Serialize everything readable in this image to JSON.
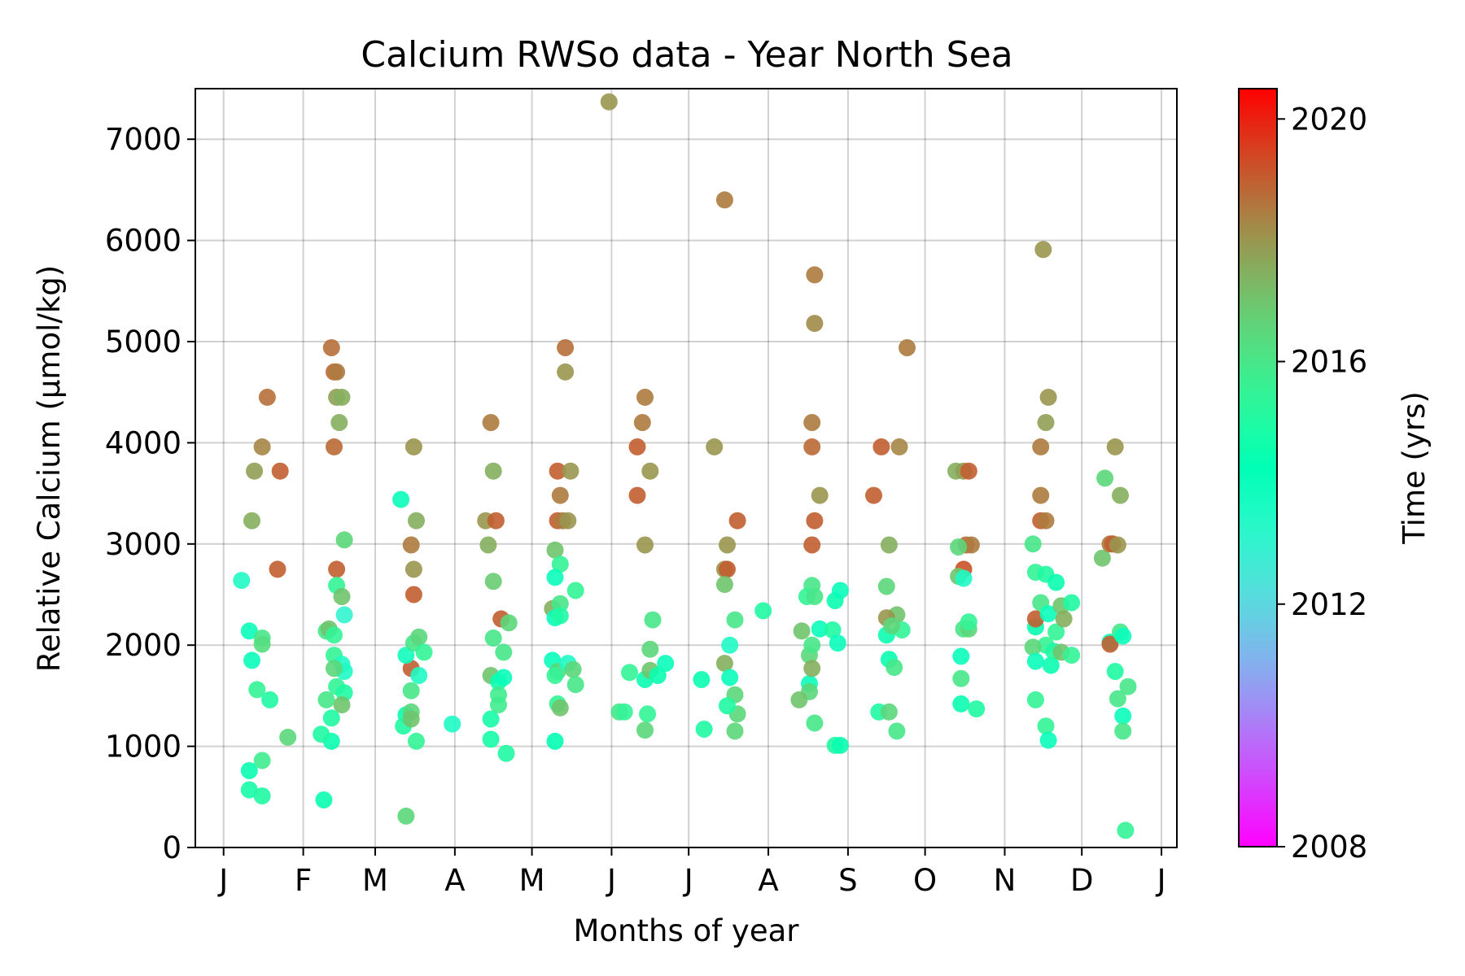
{
  "chart_data": {
    "type": "scatter",
    "title": "Calcium RWSo data - Year North Sea",
    "xlabel": "Months of year",
    "ylabel": "Relative Calcium (μmol/kg)",
    "x_unit": "day of year",
    "xlim": [
      -11,
      371
    ],
    "ylim": [
      0,
      7500
    ],
    "x_ticks": [
      {
        "day": 0,
        "label": "J"
      },
      {
        "day": 31,
        "label": "F"
      },
      {
        "day": 59,
        "label": "M"
      },
      {
        "day": 90,
        "label": "A"
      },
      {
        "day": 120,
        "label": "M"
      },
      {
        "day": 151,
        "label": "J"
      },
      {
        "day": 181,
        "label": "J"
      },
      {
        "day": 212,
        "label": "A"
      },
      {
        "day": 243,
        "label": "S"
      },
      {
        "day": 273,
        "label": "O"
      },
      {
        "day": 304,
        "label": "N"
      },
      {
        "day": 334,
        "label": "D"
      },
      {
        "day": 365,
        "label": "J"
      }
    ],
    "y_ticks": [
      0,
      1000,
      2000,
      3000,
      4000,
      5000,
      6000,
      7000
    ],
    "grid": true,
    "colorbar": {
      "label": "Time (yrs)",
      "min": 2008,
      "max": 2020.5,
      "ticks": [
        2008,
        2012,
        2016,
        2020
      ],
      "colormap": "rainbow"
    },
    "points": [
      [
        7,
        2640,
        2013.5
      ],
      [
        11,
        3230,
        2017.5
      ],
      [
        12,
        3720,
        2017.8
      ],
      [
        15,
        3960,
        2018.3
      ],
      [
        17,
        4450,
        2018.7
      ],
      [
        22,
        3720,
        2019.0
      ],
      [
        21,
        2750,
        2019.0
      ],
      [
        10,
        2140,
        2014.0
      ],
      [
        11,
        1850,
        2014.0
      ],
      [
        15,
        2070,
        2016.0
      ],
      [
        15,
        2010,
        2016.3
      ],
      [
        13,
        1560,
        2015.5
      ],
      [
        18,
        1460,
        2015.0
      ],
      [
        10,
        760,
        2014.5
      ],
      [
        10,
        570,
        2014.8
      ],
      [
        15,
        860,
        2015.8
      ],
      [
        15,
        510,
        2015.0
      ],
      [
        25,
        1090,
        2016.5
      ],
      [
        42,
        4940,
        2018.7
      ],
      [
        43,
        4700,
        2018.8
      ],
      [
        44,
        4700,
        2018.5
      ],
      [
        44,
        4450,
        2017.8
      ],
      [
        46,
        4450,
        2017.5
      ],
      [
        45,
        4200,
        2017.5
      ],
      [
        43,
        3960,
        2018.8
      ],
      [
        44,
        2750,
        2019.0
      ],
      [
        44,
        2590,
        2015.5
      ],
      [
        47,
        3040,
        2016.5
      ],
      [
        46,
        2480,
        2017.0
      ],
      [
        47,
        2300,
        2013.0
      ],
      [
        40,
        2140,
        2016.0
      ],
      [
        41,
        2160,
        2017.0
      ],
      [
        43,
        2100,
        2015.5
      ],
      [
        43,
        1900,
        2015.5
      ],
      [
        46,
        1810,
        2013.5
      ],
      [
        47,
        1740,
        2013.5
      ],
      [
        43,
        1770,
        2016.5
      ],
      [
        44,
        1590,
        2015.5
      ],
      [
        47,
        1530,
        2015.0
      ],
      [
        46,
        1410,
        2017.0
      ],
      [
        40,
        1460,
        2016.0
      ],
      [
        42,
        1280,
        2015.0
      ],
      [
        42,
        1050,
        2014.5
      ],
      [
        38,
        1120,
        2015.0
      ],
      [
        39,
        470,
        2014.5
      ],
      [
        69,
        3440,
        2014.0
      ],
      [
        74,
        3960,
        2018.0
      ],
      [
        73,
        2990,
        2018.5
      ],
      [
        74,
        2750,
        2018.0
      ],
      [
        75,
        3230,
        2017.5
      ],
      [
        74,
        2500,
        2019.0
      ],
      [
        73,
        1770,
        2019.0
      ],
      [
        71,
        1900,
        2013.8
      ],
      [
        74,
        2020,
        2016.0
      ],
      [
        76,
        2080,
        2016.5
      ],
      [
        78,
        1930,
        2015.5
      ],
      [
        76,
        1700,
        2013.5
      ],
      [
        73,
        1550,
        2016.0
      ],
      [
        71,
        1310,
        2014.5
      ],
      [
        73,
        1340,
        2016.5
      ],
      [
        70,
        1200,
        2015.0
      ],
      [
        73,
        1270,
        2017.0
      ],
      [
        75,
        1050,
        2015.5
      ],
      [
        71,
        310,
        2016.5
      ],
      [
        89,
        1220,
        2013.5
      ],
      [
        104,
        4200,
        2018.5
      ],
      [
        102,
        3230,
        2018.0
      ],
      [
        103,
        2990,
        2017.5
      ],
      [
        105,
        3720,
        2017.5
      ],
      [
        106,
        3230,
        2019.0
      ],
      [
        105,
        2630,
        2016.8
      ],
      [
        108,
        2260,
        2019.0
      ],
      [
        105,
        2070,
        2016.0
      ],
      [
        104,
        1700,
        2017.0
      ],
      [
        107,
        1640,
        2014.5
      ],
      [
        109,
        1680,
        2014.0
      ],
      [
        109,
        1930,
        2016.0
      ],
      [
        111,
        2220,
        2016.5
      ],
      [
        104,
        1270,
        2014.8
      ],
      [
        107,
        1510,
        2015.8
      ],
      [
        107,
        1410,
        2015.8
      ],
      [
        104,
        1070,
        2014.8
      ],
      [
        110,
        930,
        2015.0
      ],
      [
        130,
        3720,
        2019.0
      ],
      [
        131,
        3480,
        2018.5
      ],
      [
        130,
        3230,
        2019.0
      ],
      [
        132,
        3230,
        2018.5
      ],
      [
        134,
        3230,
        2018.0
      ],
      [
        129,
        2940,
        2017.0
      ],
      [
        131,
        2800,
        2015.5
      ],
      [
        129,
        2670,
        2014.0
      ],
      [
        133,
        4940,
        2018.7
      ],
      [
        133,
        4700,
        2018.0
      ],
      [
        135,
        3720,
        2018.0
      ],
      [
        137,
        2540,
        2015.5
      ],
      [
        128,
        2360,
        2017.5
      ],
      [
        131,
        2410,
        2016.0
      ],
      [
        129,
        2270,
        2014.0
      ],
      [
        131,
        2290,
        2015.0
      ],
      [
        128,
        1850,
        2014.0
      ],
      [
        130,
        1740,
        2016.5
      ],
      [
        129,
        1700,
        2015.5
      ],
      [
        134,
        1820,
        2013.5
      ],
      [
        136,
        1760,
        2016.5
      ],
      [
        137,
        1610,
        2016.0
      ],
      [
        130,
        1420,
        2015.5
      ],
      [
        131,
        1380,
        2017.0
      ],
      [
        129,
        1050,
        2014.3
      ],
      [
        150,
        7370,
        2018.0
      ],
      [
        161,
        3960,
        2019.0
      ],
      [
        161,
        3480,
        2019.0
      ],
      [
        164,
        4450,
        2018.5
      ],
      [
        163,
        4200,
        2018.5
      ],
      [
        166,
        3720,
        2018.0
      ],
      [
        164,
        2990,
        2018.0
      ],
      [
        167,
        2250,
        2016.0
      ],
      [
        166,
        1960,
        2016.5
      ],
      [
        158,
        1730,
        2015.5
      ],
      [
        164,
        1660,
        2014.5
      ],
      [
        166,
        1750,
        2017.0
      ],
      [
        169,
        1700,
        2014.5
      ],
      [
        172,
        1820,
        2014.0
      ],
      [
        165,
        1320,
        2015.5
      ],
      [
        164,
        1160,
        2016.5
      ],
      [
        154,
        1340,
        2016.0
      ],
      [
        156,
        1340,
        2015.5
      ],
      [
        186,
        1660,
        2014.5
      ],
      [
        187,
        1170,
        2015.0
      ],
      [
        191,
        3960,
        2018.0
      ],
      [
        195,
        6400,
        2018.5
      ],
      [
        196,
        2990,
        2018.0
      ],
      [
        195,
        2750,
        2018.0
      ],
      [
        196,
        2750,
        2019.0
      ],
      [
        200,
        3230,
        2019.0
      ],
      [
        195,
        2600,
        2017.0
      ],
      [
        197,
        2000,
        2013.5
      ],
      [
        199,
        2250,
        2016.0
      ],
      [
        195,
        1820,
        2017.5
      ],
      [
        197,
        1680,
        2014.0
      ],
      [
        199,
        1510,
        2016.5
      ],
      [
        200,
        1320,
        2016.5
      ],
      [
        196,
        1400,
        2015.0
      ],
      [
        199,
        1150,
        2016.5
      ],
      [
        210,
        2340,
        2015.0
      ],
      [
        225,
        2140,
        2017.0
      ],
      [
        230,
        5660,
        2018.5
      ],
      [
        230,
        5180,
        2018.2
      ],
      [
        229,
        4200,
        2018.5
      ],
      [
        229,
        3960,
        2018.8
      ],
      [
        232,
        3480,
        2018.0
      ],
      [
        230,
        3230,
        2019.0
      ],
      [
        229,
        2990,
        2019.0
      ],
      [
        229,
        2590,
        2016.0
      ],
      [
        227,
        2480,
        2015.5
      ],
      [
        230,
        2480,
        2016.0
      ],
      [
        228,
        1900,
        2016.5
      ],
      [
        229,
        2000,
        2016.0
      ],
      [
        232,
        2160,
        2014.0
      ],
      [
        237,
        2150,
        2015.0
      ],
      [
        238,
        2440,
        2014.5
      ],
      [
        240,
        2540,
        2014.0
      ],
      [
        239,
        2020,
        2014.0
      ],
      [
        228,
        1620,
        2014.0
      ],
      [
        229,
        1770,
        2017.5
      ],
      [
        228,
        1540,
        2016.5
      ],
      [
        224,
        1460,
        2017.0
      ],
      [
        230,
        1230,
        2016.0
      ],
      [
        238,
        1010,
        2015.0
      ],
      [
        240,
        1010,
        2014.5
      ],
      [
        253,
        3480,
        2019.0
      ],
      [
        256,
        3960,
        2019.0
      ],
      [
        263,
        3960,
        2018.3
      ],
      [
        259,
        2990,
        2017.5
      ],
      [
        258,
        2580,
        2016.5
      ],
      [
        262,
        2300,
        2017.0
      ],
      [
        258,
        2270,
        2018.0
      ],
      [
        264,
        2150,
        2015.5
      ],
      [
        258,
        2100,
        2014.5
      ],
      [
        260,
        2190,
        2016.5
      ],
      [
        259,
        1860,
        2014.5
      ],
      [
        261,
        1780,
        2016.0
      ],
      [
        255,
        1340,
        2015.0
      ],
      [
        259,
        1340,
        2016.5
      ],
      [
        262,
        1150,
        2016.0
      ],
      [
        266,
        4940,
        2018.5
      ],
      [
        285,
        3720,
        2017.5
      ],
      [
        288,
        3720,
        2017.8
      ],
      [
        290,
        3720,
        2019.0
      ],
      [
        288,
        2750,
        2019.2
      ],
      [
        289,
        2990,
        2018.8
      ],
      [
        291,
        2990,
        2018.5
      ],
      [
        286,
        2970,
        2016.5
      ],
      [
        286,
        2680,
        2017.0
      ],
      [
        288,
        2660,
        2013.5
      ],
      [
        288,
        2160,
        2016.0
      ],
      [
        290,
        2160,
        2016.5
      ],
      [
        290,
        2230,
        2015.5
      ],
      [
        287,
        1890,
        2014.0
      ],
      [
        287,
        1670,
        2016.0
      ],
      [
        287,
        1420,
        2014.5
      ],
      [
        293,
        1370,
        2015.0
      ],
      [
        315,
        3000,
        2016.0
      ],
      [
        316,
        2720,
        2015.5
      ],
      [
        318,
        2420,
        2016.0
      ],
      [
        316,
        2180,
        2014.5
      ],
      [
        316,
        2260,
        2019.0
      ],
      [
        318,
        3230,
        2019.0
      ],
      [
        318,
        3480,
        2018.5
      ],
      [
        318,
        3960,
        2018.5
      ],
      [
        320,
        4200,
        2017.8
      ],
      [
        321,
        4450,
        2018.0
      ],
      [
        320,
        3230,
        2018.5
      ],
      [
        319,
        5910,
        2018.0
      ],
      [
        320,
        2700,
        2015.0
      ],
      [
        321,
        2310,
        2014.0
      ],
      [
        320,
        2000,
        2015.5
      ],
      [
        315,
        1980,
        2016.5
      ],
      [
        316,
        1840,
        2014.0
      ],
      [
        322,
        1800,
        2014.5
      ],
      [
        323,
        1940,
        2015.0
      ],
      [
        324,
        2130,
        2015.5
      ],
      [
        324,
        2620,
        2014.5
      ],
      [
        326,
        2390,
        2017.0
      ],
      [
        327,
        2260,
        2017.5
      ],
      [
        326,
        1930,
        2017.0
      ],
      [
        330,
        2420,
        2015.0
      ],
      [
        330,
        1900,
        2015.5
      ],
      [
        316,
        1460,
        2015.5
      ],
      [
        320,
        1200,
        2015.5
      ],
      [
        321,
        1060,
        2014.0
      ],
      [
        342,
        2860,
        2017.0
      ],
      [
        343,
        3650,
        2016.5
      ],
      [
        345,
        3000,
        2018.5
      ],
      [
        346,
        3000,
        2019.0
      ],
      [
        348,
        2990,
        2018.0
      ],
      [
        347,
        3960,
        2018.0
      ],
      [
        349,
        3480,
        2017.5
      ],
      [
        345,
        2030,
        2014.0
      ],
      [
        345,
        2010,
        2019.0
      ],
      [
        347,
        1740,
        2015.0
      ],
      [
        348,
        1470,
        2016.0
      ],
      [
        349,
        2130,
        2016.0
      ],
      [
        350,
        2090,
        2014.0
      ],
      [
        350,
        1300,
        2014.0
      ],
      [
        350,
        1150,
        2016.0
      ],
      [
        352,
        1590,
        2016.0
      ],
      [
        351,
        170,
        2015.5
      ]
    ]
  }
}
